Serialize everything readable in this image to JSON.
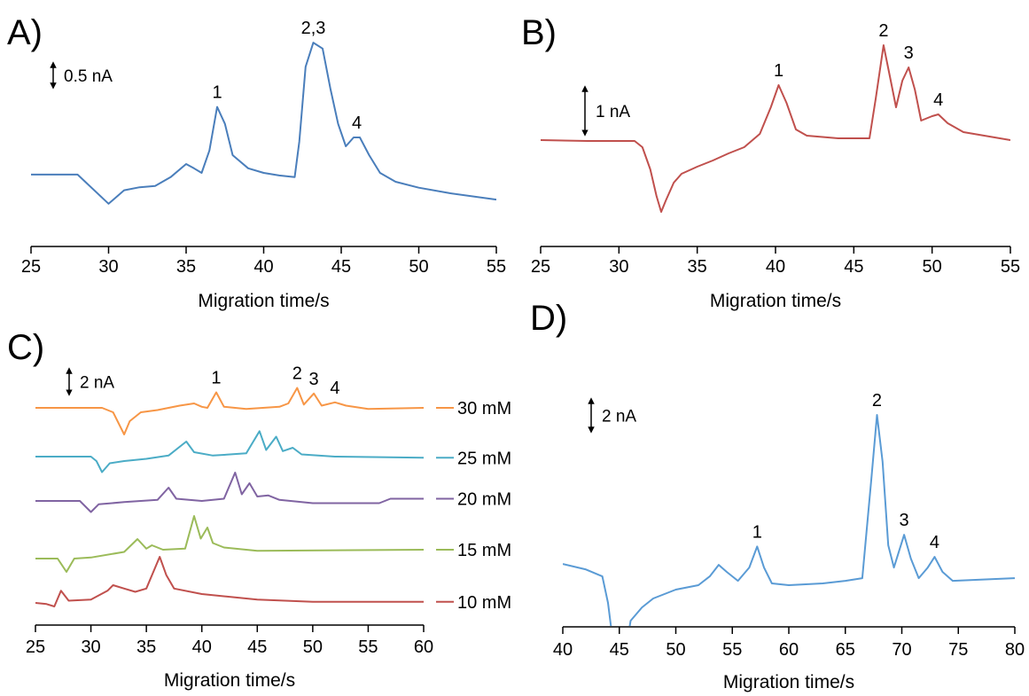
{
  "chart_data": [
    {
      "type": "line",
      "title": "A)",
      "x_label": "Migration time/s",
      "color": "#4a7ebb",
      "x": [
        25,
        28,
        30,
        31,
        32,
        33,
        34,
        35,
        35.5,
        36,
        36.5,
        37,
        37.5,
        38,
        39,
        40,
        41,
        42,
        42.3,
        42.7,
        43.2,
        43.8,
        44.3,
        44.8,
        45.3,
        45.8,
        46.2,
        46.8,
        47.5,
        48.5,
        50,
        52,
        55
      ],
      "values": [
        0,
        0,
        -0.69,
        -0.37,
        -0.3,
        -0.27,
        -0.06,
        0.25,
        0.15,
        0.04,
        0.57,
        1.6,
        1.2,
        0.46,
        0.15,
        0.04,
        -0.02,
        -0.06,
        0.78,
        2.55,
        3.12,
        2.98,
        2.04,
        1.2,
        0.67,
        0.88,
        0.88,
        0.46,
        0.04,
        -0.17,
        -0.31,
        -0.44,
        -0.59
      ],
      "xlim": [
        25,
        55
      ],
      "xticks": [
        25,
        30,
        35,
        40,
        45,
        50,
        55
      ],
      "ylim": [
        -1.7,
        3.5
      ],
      "scale_bar": {
        "value": 0.5,
        "label": "0.5 nA"
      },
      "annotations": [
        {
          "text": "1",
          "x": 37
        },
        {
          "text": "2,3",
          "x": 43.2
        },
        {
          "text": "4",
          "x": 46
        }
      ]
    },
    {
      "type": "line",
      "title": "B)",
      "x_label": "Migration time/s",
      "color": "#c0504d",
      "x": [
        25,
        28,
        31,
        31.5,
        32,
        32.4,
        32.7,
        33,
        33.5,
        34,
        35,
        36,
        37,
        38,
        39,
        39.7,
        40.2,
        40.7,
        41.3,
        42,
        44,
        46,
        46.4,
        46.9,
        47.3,
        47.7,
        48.1,
        48.5,
        48.9,
        49.3,
        50,
        50.4,
        51,
        52,
        55
      ],
      "values": [
        0,
        -0.02,
        -0.02,
        -0.16,
        -0.66,
        -1.26,
        -1.62,
        -1.36,
        -0.96,
        -0.76,
        -0.6,
        -0.46,
        -0.3,
        -0.16,
        0.14,
        0.74,
        1.24,
        0.84,
        0.24,
        0.1,
        0.04,
        0.04,
        0.94,
        2.14,
        1.44,
        0.74,
        1.34,
        1.64,
        1.14,
        0.44,
        0.54,
        0.58,
        0.38,
        0.18,
        0
      ],
      "xlim": [
        25,
        55
      ],
      "xticks": [
        25,
        30,
        35,
        40,
        45,
        50,
        55
      ],
      "ylim": [
        -2.4,
        2.56
      ],
      "scale_bar": {
        "value": 1,
        "label": "1 nA"
      },
      "annotations": [
        {
          "text": "1",
          "x": 40.2
        },
        {
          "text": "2",
          "x": 46.9
        },
        {
          "text": "3",
          "x": 48.5
        },
        {
          "text": "4",
          "x": 50.4
        }
      ]
    },
    {
      "type": "line",
      "title": "C)",
      "x_label": "Migration time/s",
      "series": [
        {
          "name": "30 mM",
          "color": "#f79646",
          "x": [
            25,
            31,
            32,
            33,
            33.5,
            34.5,
            36,
            38,
            39.3,
            40,
            40.5,
            41.3,
            42,
            44,
            47,
            47.8,
            48.6,
            49.2,
            50.1,
            50.8,
            52,
            53,
            55,
            60
          ],
          "values": [
            19.6,
            19.6,
            19.2,
            17.2,
            18.4,
            19.2,
            19.4,
            19.8,
            20.0,
            19.7,
            19.6,
            21.0,
            19.7,
            19.5,
            19.7,
            20.0,
            21.4,
            19.9,
            20.9,
            19.8,
            20.1,
            19.8,
            19.5,
            19.6
          ]
        },
        {
          "name": "25 mM",
          "color": "#4bacc6",
          "x": [
            25,
            30,
            30.5,
            31,
            31.7,
            33,
            35,
            37,
            38.6,
            39.3,
            41,
            44,
            45.2,
            45.8,
            46.7,
            47.3,
            48.2,
            49,
            52,
            60
          ],
          "values": [
            15.2,
            15.2,
            14.8,
            13.8,
            14.6,
            14.8,
            15.0,
            15.3,
            16.56,
            15.6,
            15.3,
            15.5,
            17.5,
            15.8,
            17.0,
            15.7,
            16.0,
            15.4,
            15.2,
            15.1
          ]
        },
        {
          "name": "20 mM",
          "color": "#8064a2",
          "x": [
            25,
            29,
            30,
            30.7,
            33,
            36,
            37,
            37.7,
            40,
            42,
            43,
            43.6,
            44.3,
            45,
            46,
            47,
            50,
            56,
            57,
            60
          ],
          "values": [
            11.2,
            11.2,
            10.2,
            10.9,
            11.1,
            11.3,
            12.4,
            11.4,
            11.2,
            11.4,
            13.76,
            11.8,
            12.8,
            11.6,
            11.7,
            11.3,
            11.0,
            11.0,
            11.4,
            11.4
          ]
        },
        {
          "name": "15 mM",
          "color": "#9bbb59",
          "x": [
            25,
            27,
            27.8,
            28.5,
            30,
            33,
            34.2,
            35,
            35.5,
            36.5,
            38.5,
            39.3,
            39.9,
            40.5,
            41,
            42,
            45,
            60
          ],
          "values": [
            6.0,
            6.0,
            4.8,
            6.0,
            6.1,
            6.6,
            7.76,
            6.9,
            7.2,
            6.8,
            6.9,
            9.84,
            7.8,
            8.8,
            7.4,
            7.0,
            6.7,
            6.8
          ]
        },
        {
          "name": "10 mM",
          "color": "#c0504d",
          "x": [
            25,
            26,
            26.7,
            27.3,
            28,
            30,
            31.5,
            32,
            33,
            34,
            35,
            36.2,
            36.8,
            37.5,
            40,
            45,
            50,
            60
          ],
          "values": [
            2.0,
            1.9,
            1.68,
            3.1,
            2.2,
            2.3,
            3.1,
            3.6,
            3.3,
            3.0,
            3.3,
            6.16,
            4.5,
            3.3,
            2.8,
            2.3,
            2.1,
            2.1
          ]
        }
      ],
      "xlim": [
        25,
        60
      ],
      "xticks": [
        25,
        30,
        35,
        40,
        45,
        50,
        55,
        60
      ],
      "ylim": [
        0,
        24.4
      ],
      "scale_bar": {
        "value": 2,
        "label": "2 nA"
      },
      "annotations": [
        {
          "text": "1",
          "x": 41.3
        },
        {
          "text": "2",
          "x": 48.6
        },
        {
          "text": "3",
          "x": 50.1
        },
        {
          "text": "4",
          "x": 52
        }
      ]
    },
    {
      "type": "line",
      "title": "D)",
      "x_label": "Migration time/s",
      "color": "#5a9bd5",
      "x": [
        40,
        42,
        43.5,
        44,
        44.6,
        45.5,
        46,
        47,
        48,
        50,
        52,
        53,
        53.8,
        54.5,
        55.5,
        56.5,
        57.2,
        57.8,
        58.5,
        60,
        63,
        65,
        66.5,
        67.3,
        67.8,
        68.3,
        68.8,
        69.3,
        70.2,
        70.8,
        71.5,
        72.3,
        72.9,
        73.6,
        74.5,
        80
      ],
      "values": [
        4.3,
        3.94,
        3.45,
        1.64,
        -2,
        -2,
        0.42,
        1.33,
        1.94,
        2.55,
        2.85,
        3.45,
        4.24,
        3.76,
        3.15,
        4.06,
        5.5,
        4.06,
        2.97,
        2.85,
        2.97,
        3.15,
        3.33,
        10.1,
        14.5,
        11.3,
        5.58,
        4.06,
        6.3,
        4.67,
        3.33,
        4.06,
        4.79,
        3.76,
        3.15,
        3.33
      ],
      "xlim": [
        40,
        80
      ],
      "xticks": [
        40,
        45,
        50,
        55,
        60,
        65,
        70,
        75,
        80
      ],
      "ylim": [
        0,
        16.2
      ],
      "scale_bar": {
        "value": 2,
        "label": "2 nA"
      },
      "annotations": [
        {
          "text": "1",
          "x": 57.2
        },
        {
          "text": "2",
          "x": 67.8
        },
        {
          "text": "3",
          "x": 70.2
        },
        {
          "text": "4",
          "x": 72.9
        }
      ]
    }
  ]
}
